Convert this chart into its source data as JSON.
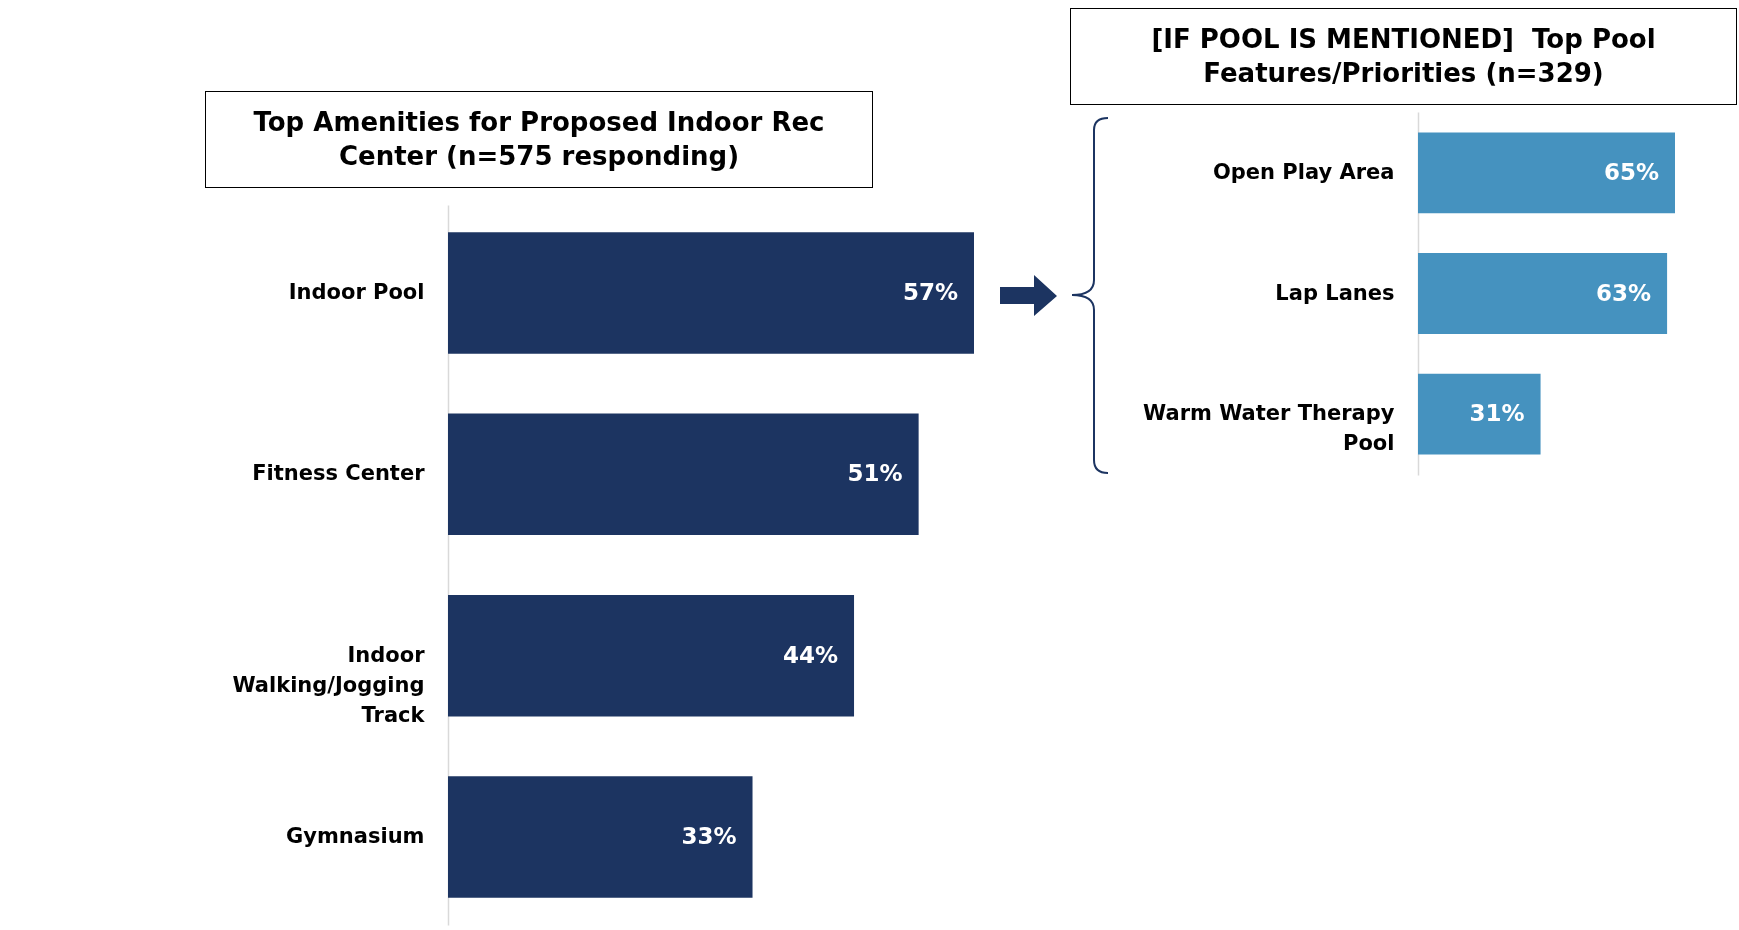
{
  "chart_data": [
    {
      "type": "bar",
      "orientation": "horizontal",
      "title": "Top Amenities for Proposed Indoor Rec Center (n=575 responding)",
      "categories": [
        "Indoor Pool",
        "Fitness Center",
        "Indoor Walking/Jogging Track",
        "Gymnasium"
      ],
      "values": [
        57,
        51,
        44,
        33
      ],
      "color": "#1c3461",
      "value_labels": [
        "57%",
        "51%",
        "44%",
        "33%"
      ]
    },
    {
      "type": "bar",
      "orientation": "horizontal",
      "title": "[IF POOL IS MENTIONED]  Top Pool Features/Priorities (n=329)",
      "categories": [
        "Open Play Area",
        "Lap Lanes",
        "Warm Water Therapy Pool"
      ],
      "values": [
        65,
        63,
        31
      ],
      "color": "#4592bf",
      "value_labels": [
        "65%",
        "63%",
        "31%"
      ]
    }
  ]
}
